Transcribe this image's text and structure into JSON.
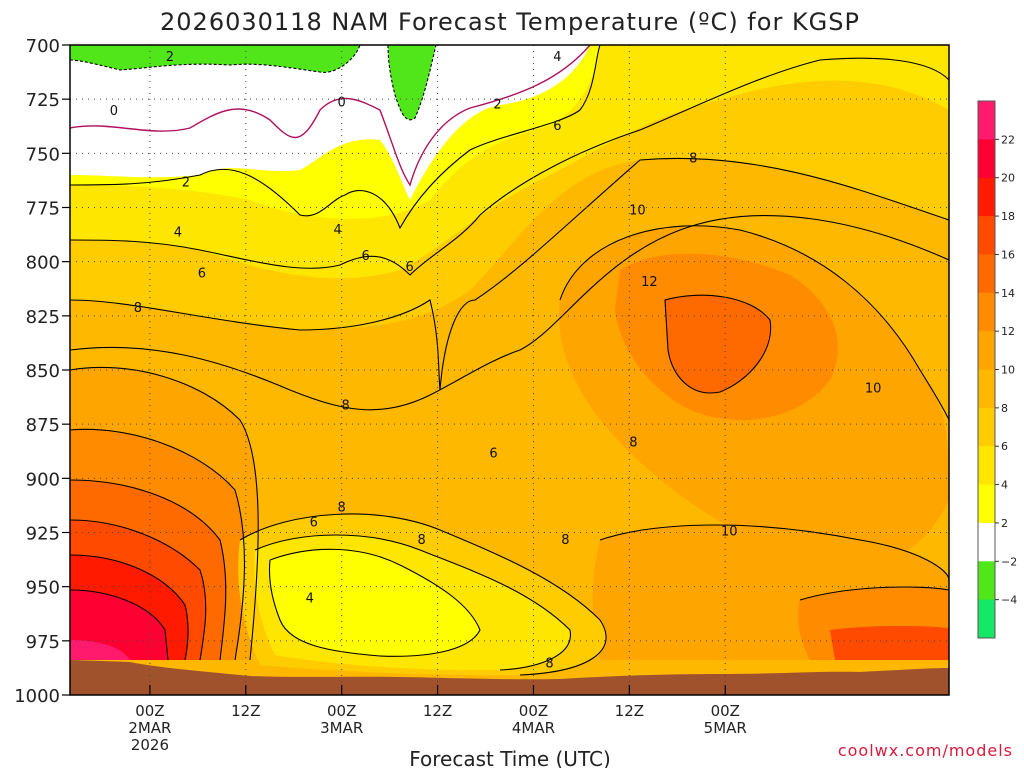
{
  "chart_data": {
    "type": "heatmap",
    "title": "2026030118 NAM Forecast Temperature (ºC) for KGSP",
    "xlabel": "Forecast Time (UTC)",
    "ylabel": "",
    "credit": "coolwx.com/models",
    "xlim": [
      -10,
      100
    ],
    "ylim": [
      1000,
      700
    ],
    "y_scale": "pressure (reversed)",
    "grid": true,
    "y_ticks": [
      "700",
      "725",
      "750",
      "775",
      "800",
      "825",
      "850",
      "875",
      "900",
      "925",
      "950",
      "975",
      "1000"
    ],
    "x_ticks": [
      {
        "hour": 0,
        "lines": [
          "00Z",
          "2MAR",
          "2026"
        ]
      },
      {
        "hour": 12,
        "lines": [
          "12Z"
        ]
      },
      {
        "hour": 24,
        "lines": [
          "00Z",
          "3MAR"
        ]
      },
      {
        "hour": 36,
        "lines": [
          "12Z"
        ]
      },
      {
        "hour": 48,
        "lines": [
          "00Z",
          "4MAR"
        ]
      },
      {
        "hour": 60,
        "lines": [
          "12Z"
        ]
      },
      {
        "hour": 72,
        "lines": [
          "00Z",
          "5MAR"
        ]
      }
    ],
    "colorbar": {
      "labels": [
        "22",
        "20",
        "18",
        "16",
        "14",
        "12",
        "10",
        "8",
        "6",
        "4",
        "2",
        "−2",
        "−4"
      ],
      "colors": [
        "#ff1a6e",
        "#ff0033",
        "#ff1a00",
        "#ff4a00",
        "#ff6a00",
        "#ff8c00",
        "#ffa500",
        "#ffb800",
        "#ffcc00",
        "#ffe600",
        "#ffff00",
        "#ffffff",
        "#50e61a",
        "#14e864"
      ]
    },
    "contour_labels": [
      {
        "text": "2",
        "hour": 2.5,
        "p": 705
      },
      {
        "text": "0",
        "hour": -4.5,
        "p": 730
      },
      {
        "text": "0",
        "hour": 24.0,
        "p": 726
      },
      {
        "text": "2",
        "hour": 43.5,
        "p": 727
      },
      {
        "text": "4",
        "hour": 51.0,
        "p": 705
      },
      {
        "text": "6",
        "hour": 51.0,
        "p": 737
      },
      {
        "text": "2",
        "hour": 4.5,
        "p": 763
      },
      {
        "text": "8",
        "hour": 68.0,
        "p": 752
      },
      {
        "text": "4",
        "hour": 3.5,
        "p": 786
      },
      {
        "text": "4",
        "hour": 23.5,
        "p": 785
      },
      {
        "text": "10",
        "hour": 61.0,
        "p": 776
      },
      {
        "text": "6",
        "hour": 27.0,
        "p": 797
      },
      {
        "text": "6",
        "hour": 32.5,
        "p": 802
      },
      {
        "text": "6",
        "hour": 6.5,
        "p": 805
      },
      {
        "text": "12",
        "hour": 62.5,
        "p": 809
      },
      {
        "text": "8",
        "hour": -1.5,
        "p": 821
      },
      {
        "text": "8",
        "hour": 24.5,
        "p": 866
      },
      {
        "text": "10",
        "hour": 90.5,
        "p": 858
      },
      {
        "text": "6",
        "hour": 43.0,
        "p": 888
      },
      {
        "text": "8",
        "hour": 60.5,
        "p": 883
      },
      {
        "text": "8",
        "hour": 24.0,
        "p": 913
      },
      {
        "text": "6",
        "hour": 20.5,
        "p": 920
      },
      {
        "text": "8",
        "hour": 34.0,
        "p": 928
      },
      {
        "text": "8",
        "hour": 52.0,
        "p": 928
      },
      {
        "text": "10",
        "hour": 72.5,
        "p": 924
      },
      {
        "text": "4",
        "hour": 20.0,
        "p": 955
      },
      {
        "text": "8",
        "hour": 50.0,
        "p": 985
      }
    ]
  }
}
